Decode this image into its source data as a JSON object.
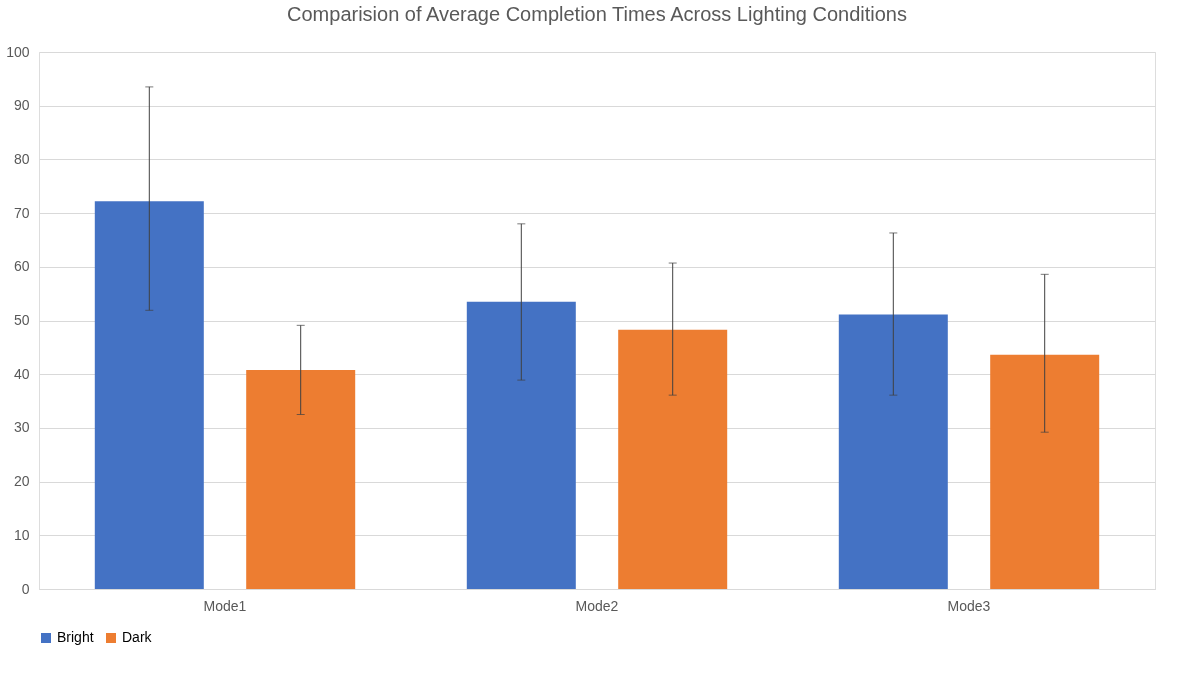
{
  "chart_data": {
    "type": "bar",
    "title": "Comparision of Average Completion Times Across Lighting Conditions",
    "categories": [
      "Mode1",
      "Mode2",
      "Mode3"
    ],
    "series": [
      {
        "name": "Bright",
        "color": "#4472c4",
        "values": [
          72.2,
          53.5,
          51.1
        ],
        "errors": [
          [
            51.9,
            93.5
          ],
          [
            38.9,
            68.0
          ],
          [
            36.1,
            66.3
          ]
        ]
      },
      {
        "name": "Dark",
        "color": "#ed7d31",
        "values": [
          40.8,
          48.3,
          43.6
        ],
        "errors": [
          [
            32.5,
            49.1
          ],
          [
            36.1,
            60.7
          ],
          [
            29.2,
            58.6
          ]
        ]
      }
    ],
    "ylim": [
      0,
      100
    ],
    "yticks": [
      0,
      10,
      20,
      30,
      40,
      50,
      60,
      70,
      80,
      90,
      100
    ],
    "grid": "y",
    "legend": "bottom"
  }
}
